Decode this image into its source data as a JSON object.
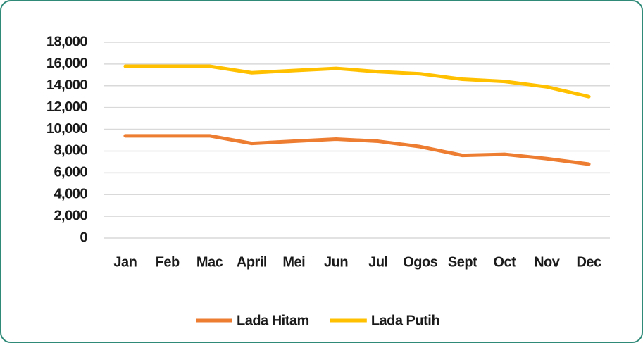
{
  "chart_data": {
    "type": "line",
    "categories": [
      "Jan",
      "Feb",
      "Mac",
      "April",
      "Mei",
      "Jun",
      "Jul",
      "Ogos",
      "Sept",
      "Oct",
      "Nov",
      "Dec"
    ],
    "series": [
      {
        "name": "Lada Hitam",
        "color": "#ed7d31",
        "values": [
          9400,
          9400,
          9400,
          8700,
          8900,
          9100,
          8900,
          8400,
          7600,
          7700,
          7300,
          6800
        ]
      },
      {
        "name": "Lada Putih",
        "color": "#ffc000",
        "values": [
          15800,
          15800,
          15800,
          15200,
          15400,
          15600,
          15300,
          15100,
          14600,
          14400,
          13900,
          13000
        ]
      }
    ],
    "ylim": [
      0,
      18000
    ],
    "yticks": [
      0,
      {
        "value": 2000,
        "label": "2,000"
      },
      {
        "value": 4000,
        "label": "4,000"
      },
      {
        "value": 6000,
        "label": "6,000"
      },
      {
        "value": 8000,
        "label": "8,000"
      },
      {
        "value": 10000,
        "label": "10,000"
      },
      {
        "value": 12000,
        "label": "12,000"
      },
      {
        "value": 14000,
        "label": "14,000"
      },
      {
        "value": 16000,
        "label": "16,000"
      },
      {
        "value": 18000,
        "label": "18,000"
      }
    ],
    "grid": true,
    "legend": "bottom"
  }
}
